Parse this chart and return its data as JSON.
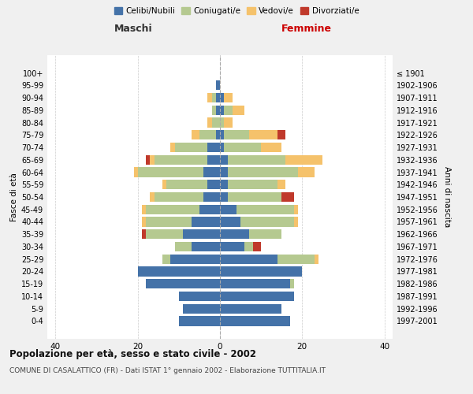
{
  "age_groups": [
    "100+",
    "95-99",
    "90-94",
    "85-89",
    "80-84",
    "75-79",
    "70-74",
    "65-69",
    "60-64",
    "55-59",
    "50-54",
    "45-49",
    "40-44",
    "35-39",
    "30-34",
    "25-29",
    "20-24",
    "15-19",
    "10-14",
    "5-9",
    "0-4"
  ],
  "birth_years": [
    "≤ 1901",
    "1902-1906",
    "1907-1911",
    "1912-1916",
    "1917-1921",
    "1922-1926",
    "1927-1931",
    "1932-1936",
    "1937-1941",
    "1942-1946",
    "1947-1951",
    "1952-1956",
    "1957-1961",
    "1962-1966",
    "1967-1971",
    "1972-1976",
    "1977-1981",
    "1982-1986",
    "1987-1991",
    "1992-1996",
    "1997-2001"
  ],
  "males": {
    "celibe": [
      0,
      1,
      1,
      1,
      0,
      1,
      3,
      3,
      4,
      3,
      4,
      5,
      7,
      9,
      7,
      12,
      20,
      18,
      10,
      9,
      10
    ],
    "coniugato": [
      0,
      0,
      1,
      1,
      2,
      4,
      8,
      13,
      16,
      10,
      12,
      13,
      11,
      9,
      4,
      2,
      0,
      0,
      0,
      0,
      0
    ],
    "vedovo": [
      0,
      0,
      1,
      0,
      1,
      2,
      1,
      1,
      1,
      1,
      1,
      1,
      1,
      0,
      0,
      0,
      0,
      0,
      0,
      0,
      0
    ],
    "divorziato": [
      0,
      0,
      0,
      0,
      0,
      0,
      0,
      1,
      0,
      0,
      0,
      0,
      0,
      1,
      0,
      0,
      0,
      0,
      0,
      0,
      0
    ]
  },
  "females": {
    "nubile": [
      0,
      0,
      1,
      1,
      0,
      1,
      1,
      2,
      2,
      2,
      2,
      4,
      5,
      7,
      6,
      14,
      20,
      17,
      18,
      15,
      17
    ],
    "coniugata": [
      0,
      0,
      0,
      2,
      1,
      6,
      9,
      14,
      17,
      12,
      13,
      14,
      13,
      8,
      2,
      9,
      0,
      1,
      0,
      0,
      0
    ],
    "vedova": [
      0,
      0,
      2,
      3,
      2,
      7,
      5,
      9,
      4,
      2,
      0,
      1,
      1,
      0,
      0,
      1,
      0,
      0,
      0,
      0,
      0
    ],
    "divorziata": [
      0,
      0,
      0,
      0,
      0,
      2,
      0,
      0,
      0,
      0,
      3,
      0,
      0,
      0,
      2,
      0,
      0,
      0,
      0,
      0,
      0
    ]
  },
  "colors": {
    "celibe": "#4472a8",
    "coniugato": "#b5c990",
    "vedovo": "#f5c26b",
    "divorziato": "#c0392b"
  },
  "title": "Popolazione per età, sesso e stato civile - 2002",
  "subtitle": "COMUNE DI CASALATTICO (FR) - Dati ISTAT 1° gennaio 2002 - Elaborazione TUTTITALIA.IT",
  "xlabel_left": "Maschi",
  "xlabel_right": "Femmine",
  "ylabel_left": "Fasce di età",
  "ylabel_right": "Anni di nascita",
  "xlim": 42,
  "bg_color": "#f0f0f0",
  "plot_bg_color": "#ffffff",
  "legend_labels": [
    "Celibi/Nubili",
    "Coniugati/e",
    "Vedovi/e",
    "Divorziati/e"
  ]
}
